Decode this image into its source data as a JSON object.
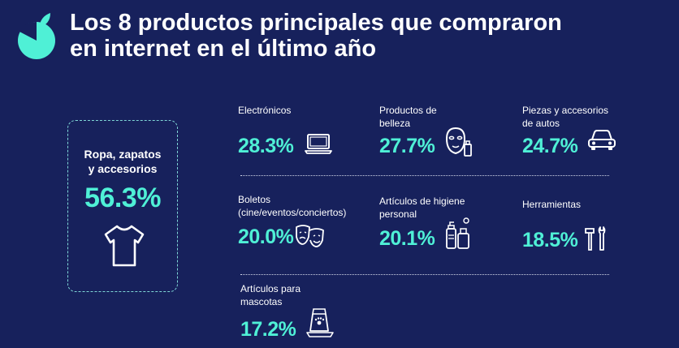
{
  "header": {
    "title_line1": "Los 8 productos principales que compraron",
    "title_line2": "en internet en el último año"
  },
  "featured": {
    "label_line1": "Ropa, zapatos",
    "label_line2": "y accesorios",
    "value": "56.3%",
    "icon": "tshirt-icon"
  },
  "products": [
    {
      "label_lines": [
        "Electrónicos"
      ],
      "value": "28.3%",
      "icon": "laptop-icon"
    },
    {
      "label_lines": [
        "Productos de",
        "belleza"
      ],
      "value": "27.7%",
      "icon": "face-mask-icon"
    },
    {
      "label_lines": [
        "Piezas y accesorios",
        "de autos"
      ],
      "value": "24.7%",
      "icon": "car-icon"
    },
    {
      "label_lines": [
        "Boletos",
        "(cine/eventos/conciertos)"
      ],
      "value": "20.0%",
      "icon": "theater-masks-icon"
    },
    {
      "label_lines": [
        "Artículos de higiene",
        "personal"
      ],
      "value": "20.1%",
      "icon": "hygiene-bottles-icon"
    },
    {
      "label_lines": [
        "Herramientas"
      ],
      "value": "18.5%",
      "icon": "tools-icon"
    },
    {
      "label_lines": [
        "Artículos para",
        "mascotas"
      ],
      "value": "17.2%",
      "icon": "pet-food-icon"
    }
  ],
  "colors": {
    "background": "#17215c",
    "accent": "#4ff0d6",
    "text": "#ffffff"
  }
}
